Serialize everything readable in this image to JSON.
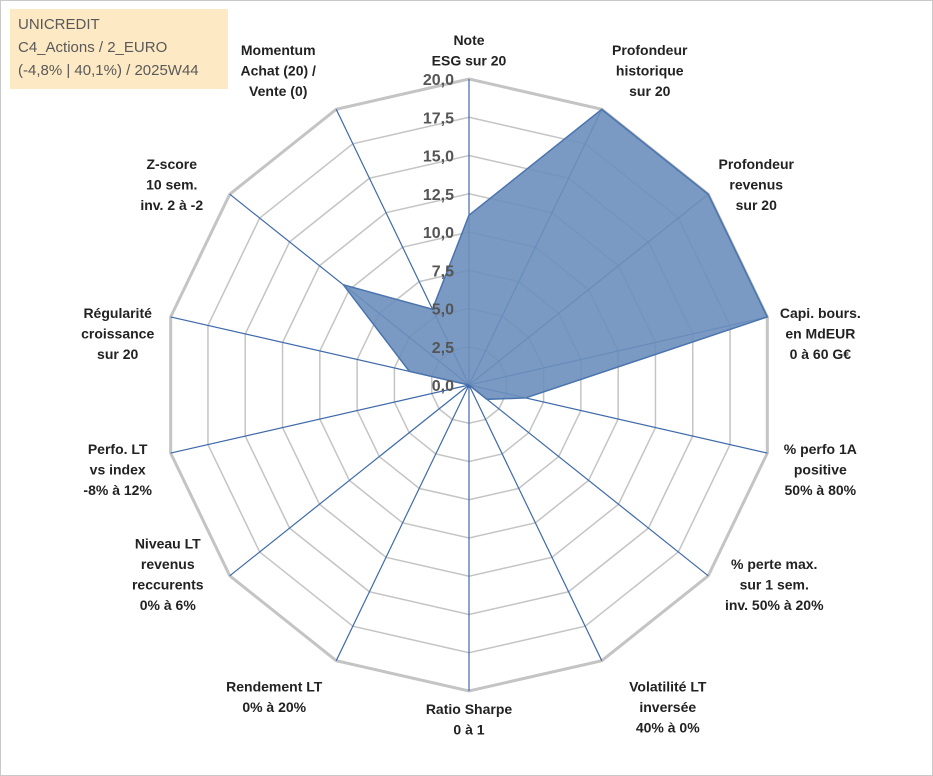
{
  "info": {
    "line1": "UNICREDIT",
    "line2": "C4_Actions / 2_EURO",
    "line3": "(-4,8% | 40,1%) / 2025W44"
  },
  "colors": {
    "fill": "#6b8fbc",
    "stroke": "#4a74ad",
    "grid": "#c4c4c4",
    "spoke": "#3f69aa",
    "info_bg": "#fde9c4"
  },
  "chart_data": {
    "type": "radar",
    "rmin": 0,
    "rmax": 20,
    "ticks": [
      0,
      2.5,
      5,
      7.5,
      10,
      12.5,
      15,
      17.5,
      20
    ],
    "tick_labels": [
      "0,0",
      "2,5",
      "5,0",
      "7,5",
      "10,0",
      "12,5",
      "15,0",
      "17,5",
      "20,0"
    ],
    "axes": [
      {
        "label": [
          "Note",
          "ESG sur 20"
        ],
        "value": 11.1
      },
      {
        "label": [
          "Profondeur",
          "historique",
          "sur 20"
        ],
        "value": 20
      },
      {
        "label": [
          "Profondeur",
          "revenus",
          "sur 20"
        ],
        "value": 20
      },
      {
        "label": [
          "Capi. bours.",
          "en MdEUR",
          "0 à 60 G€"
        ],
        "value": 20
      },
      {
        "label": [
          "% perfo 1A",
          "positive",
          "50% à 80%"
        ],
        "value": 3.8
      },
      {
        "label": [
          "% perte max.",
          "sur 1 sem.",
          "inv. 50% à 20%"
        ],
        "value": 1.5
      },
      {
        "label": [
          "Volatilité LT",
          "inversée",
          "40% à 0%"
        ],
        "value": 0
      },
      {
        "label": [
          "Ratio Sharpe",
          "0 à 1"
        ],
        "value": 0
      },
      {
        "label": [
          "Rendement LT",
          "0% à 20%"
        ],
        "value": 0
      },
      {
        "label": [
          "Niveau LT",
          "revenus",
          "reccurents",
          "0% à 6%"
        ],
        "value": 0
      },
      {
        "label": [
          "Perfo. LT",
          "vs index",
          "-8% à 12%"
        ],
        "value": 0
      },
      {
        "label": [
          "Régularité",
          "croissance",
          "sur 20"
        ],
        "value": 4.0
      },
      {
        "label": [
          "Z-score",
          "10 sem.",
          "inv. 2 à -2"
        ],
        "value": 10.5
      },
      {
        "label": [
          "Momentum",
          "Achat (20) /",
          "Vente (0)"
        ],
        "value": 5.5
      }
    ]
  }
}
